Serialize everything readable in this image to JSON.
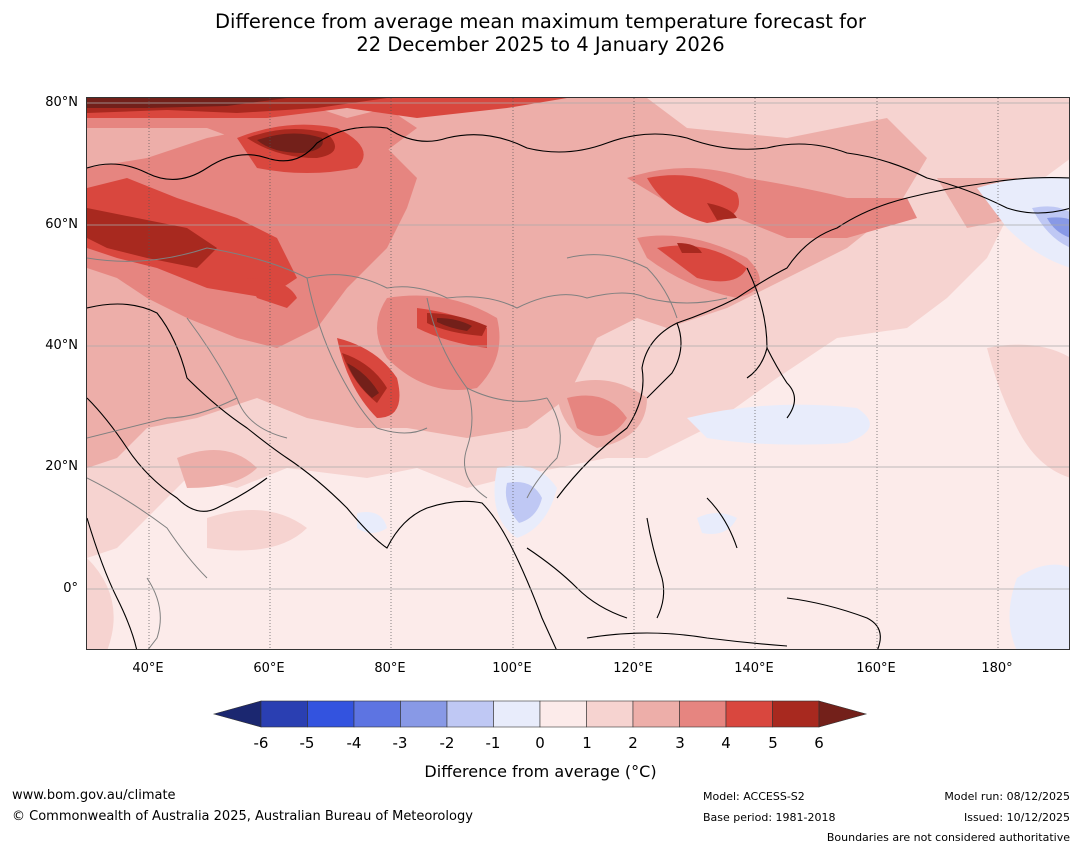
{
  "title": {
    "line1": "Difference from average mean maximum temperature forecast for",
    "line2": "22 December 2025 to 4 January 2026"
  },
  "map": {
    "lat_labels": [
      "80°N",
      "60°N",
      "40°N",
      "20°N",
      "0°"
    ],
    "lon_labels": [
      "40°E",
      "60°E",
      "80°E",
      "100°E",
      "120°E",
      "140°E",
      "160°E",
      "180°"
    ]
  },
  "colorbar": {
    "ticks": [
      "-6",
      "-5",
      "-4",
      "-3",
      "-2",
      "-1",
      "0",
      "1",
      "2",
      "3",
      "4",
      "5",
      "6"
    ],
    "label": "Difference from average (°C)",
    "colors": {
      "below_-6": "#1b2770",
      "-6_-5": "#2a3fb2",
      "-5_-4": "#3353df",
      "-4_-3": "#5d74e2",
      "-3_-2": "#8899e6",
      "-2_-1": "#bfc8f4",
      "-1_0": "#e8ecfb",
      "0_1": "#fcebea",
      "1_2": "#f6d3d0",
      "2_3": "#edaea9",
      "3_4": "#e68580",
      "4_5": "#d9473e",
      "5_6": "#a8291f",
      "above_6": "#73201a"
    }
  },
  "footer": {
    "website": "www.bom.gov.au/climate",
    "copyright": "© Commonwealth of Australia 2025, Australian Bureau of Meteorology",
    "model": "Model: ACCESS-S2",
    "base_period": "Base period: 1981-2018",
    "model_run": "Model run: 08/12/2025",
    "issued": "Issued: 10/12/2025",
    "disclaimer": "Boundaries are not considered authoritative"
  }
}
